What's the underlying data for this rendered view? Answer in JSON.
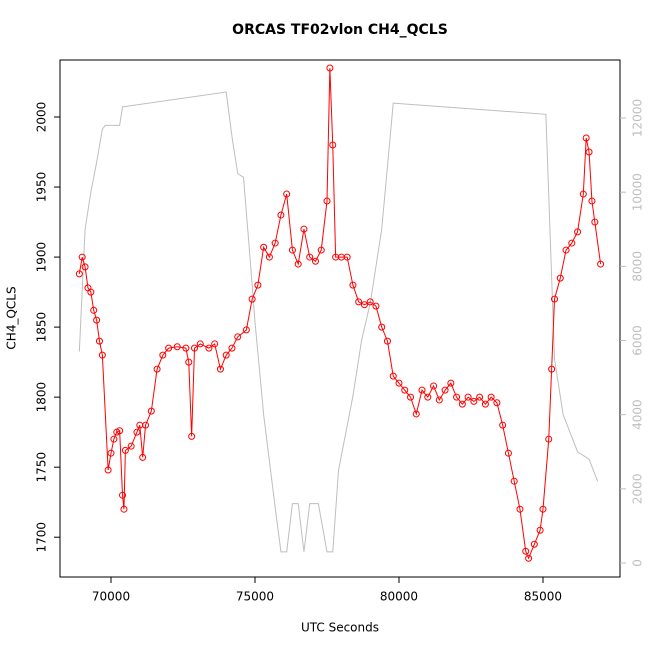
{
  "chart_data": {
    "type": "line",
    "title": "ORCAS TF02vlon CH4_QCLS",
    "x_label": "UTC Seconds",
    "y_label": "CH4_QCLS",
    "xlim": [
      68229,
      87674
    ],
    "xticks": [
      70000,
      75000,
      80000,
      85000
    ],
    "ylim": [
      1671.6,
      2040.7
    ],
    "yticks": [
      1700,
      1750,
      1800,
      1850,
      1900,
      1950,
      2000
    ],
    "y2lim": [
      -378,
      13564
    ],
    "y2ticks": [
      0,
      2000,
      4000,
      6000,
      8000,
      10000,
      12000
    ],
    "series": [
      {
        "color": "#ff0000",
        "markers": true,
        "x": [
          68900,
          69000,
          69100,
          69200,
          69300,
          69400,
          69500,
          69600,
          69700,
          69900,
          70000,
          70100,
          70200,
          70300,
          70400,
          70450,
          70500,
          70700,
          70900,
          71000,
          71100,
          71200,
          71400,
          71600,
          71800,
          72000,
          72300,
          72600,
          72700,
          72800,
          72900,
          73100,
          73400,
          73600,
          73800,
          74000,
          74200,
          74400,
          74700,
          74900,
          75100,
          75300,
          75500,
          75700,
          75900,
          76100,
          76300,
          76500,
          76700,
          76900,
          77100,
          77300,
          77500,
          77600,
          77700,
          77800,
          78000,
          78200,
          78400,
          78600,
          78800,
          79000,
          79200,
          79400,
          79600,
          79800,
          80000,
          80200,
          80400,
          80600,
          80800,
          81000,
          81200,
          81400,
          81600,
          81800,
          82000,
          82200,
          82400,
          82600,
          82800,
          83000,
          83200,
          83400,
          83600,
          83800,
          84000,
          84200,
          84400,
          84500,
          84700,
          84900,
          85000,
          85200,
          85300,
          85400,
          85600,
          85800,
          86000,
          86200,
          86400,
          86500,
          86600,
          86700,
          86800,
          87000
        ],
        "values": [
          1888,
          1900,
          1893,
          1878,
          1875,
          1862,
          1855,
          1840,
          1830,
          1748,
          1760,
          1770,
          1775,
          1776,
          1730,
          1720,
          1762,
          1765,
          1775,
          1780,
          1757,
          1780,
          1790,
          1820,
          1830,
          1835,
          1836,
          1835,
          1825,
          1772,
          1835,
          1838,
          1835,
          1838,
          1820,
          1830,
          1835,
          1843,
          1848,
          1870,
          1880,
          1907,
          1900,
          1910,
          1930,
          1945,
          1905,
          1895,
          1920,
          1900,
          1897,
          1905,
          1940,
          2035,
          1980,
          1900,
          1900,
          1900,
          1880,
          1868,
          1866,
          1868,
          1865,
          1850,
          1840,
          1815,
          1810,
          1805,
          1800,
          1788,
          1805,
          1800,
          1808,
          1798,
          1805,
          1810,
          1800,
          1795,
          1800,
          1797,
          1800,
          1795,
          1800,
          1796,
          1780,
          1760,
          1740,
          1720,
          1690,
          1685,
          1695,
          1705,
          1720,
          1770,
          1820,
          1870,
          1885,
          1905,
          1910,
          1918,
          1945,
          1985,
          1975,
          1940,
          1925,
          1895
        ]
      },
      {
        "color": "#bebebe",
        "markers": false,
        "axis": "y2",
        "x": [
          68900,
          69100,
          69300,
          69500,
          69700,
          69800,
          70300,
          70400,
          74000,
          74200,
          74400,
          74600,
          74800,
          75000,
          75300,
          75700,
          75900,
          76100,
          76300,
          76500,
          76700,
          76900,
          77200,
          77500,
          77700,
          77900,
          78400,
          78700,
          79000,
          79400,
          79800,
          85100,
          85400,
          85700,
          86200,
          86600,
          86900
        ],
        "values": [
          5700,
          9000,
          10000,
          10800,
          11700,
          11800,
          11800,
          12300,
          12700,
          11500,
          10500,
          10400,
          8500,
          6500,
          4000,
          1500,
          300,
          300,
          1600,
          1600,
          300,
          1600,
          1600,
          300,
          300,
          2500,
          4500,
          6000,
          7000,
          9000,
          12400,
          12100,
          5500,
          4000,
          3000,
          2800,
          2200
        ]
      }
    ]
  }
}
